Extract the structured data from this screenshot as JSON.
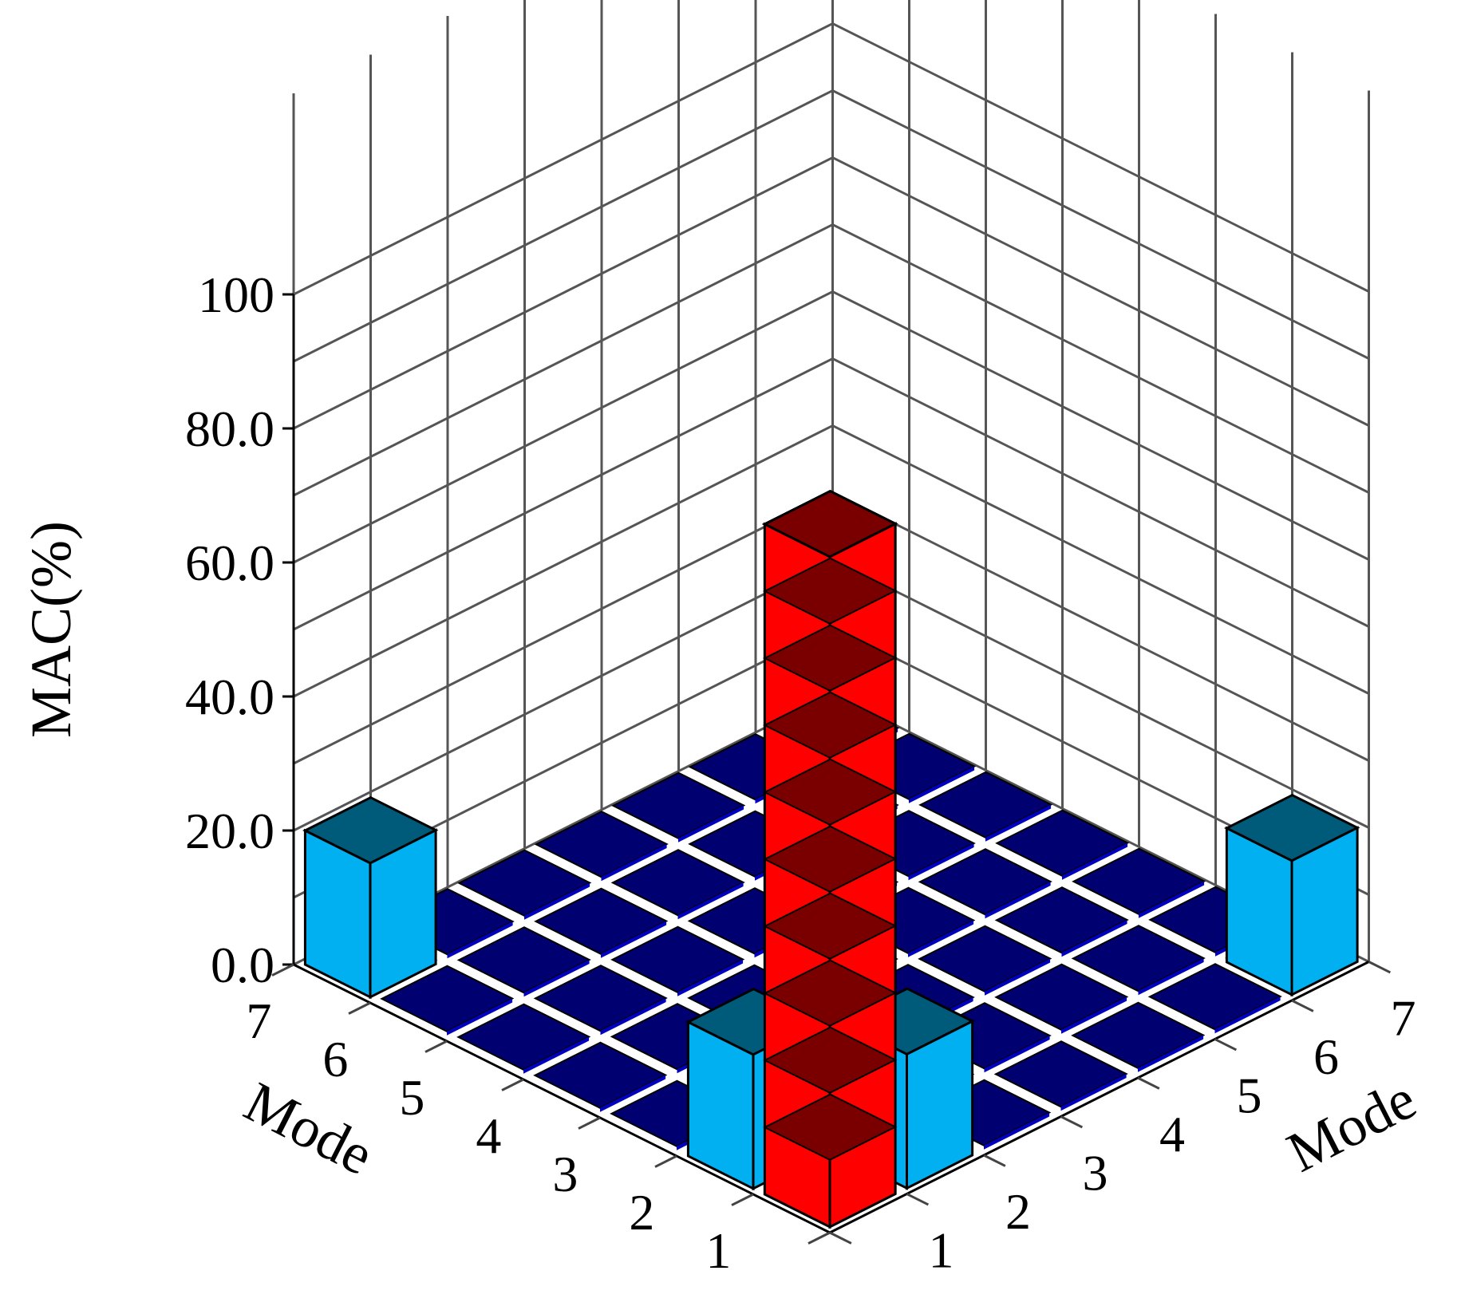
{
  "chart_data": {
    "type": "bar3d",
    "title": "",
    "zlabel": "MAC(%)",
    "xlabel": "Mode",
    "ylabel": "Mode",
    "x_ticks": [
      "1",
      "2",
      "3",
      "4",
      "5",
      "6",
      "7"
    ],
    "y_ticks": [
      "1",
      "2",
      "3",
      "4",
      "5",
      "6",
      "7"
    ],
    "z_ticks": [
      "0.0",
      "20.0",
      "40.0",
      "60.0",
      "80.0",
      "100"
    ],
    "zlim": [
      0,
      100
    ],
    "grid": true,
    "values": [
      [
        100,
        20,
        0,
        0,
        0,
        0,
        0
      ],
      [
        20,
        0,
        0,
        0,
        0,
        0,
        0
      ],
      [
        0,
        0,
        0,
        0,
        0,
        0,
        0
      ],
      [
        0,
        0,
        0,
        0,
        0,
        0,
        0
      ],
      [
        0,
        0,
        0,
        0,
        0,
        0,
        0
      ],
      [
        0,
        0,
        0,
        0,
        0,
        0,
        0
      ],
      [
        0,
        0,
        0,
        0,
        0,
        0,
        0
      ]
    ],
    "floating_blocks": [
      {
        "x_mode": 7,
        "y_mode": 1,
        "bottom": 0,
        "top": 20
      },
      {
        "x_mode": 1,
        "y_mode": 7,
        "bottom": 0,
        "top": 20
      }
    ],
    "colors": {
      "high": "#ff0000",
      "high_top": "#7a0000",
      "mid": "#00b0f0",
      "mid_top": "#005a7a",
      "low": "#000070",
      "low_edge": "#0000c0"
    }
  }
}
